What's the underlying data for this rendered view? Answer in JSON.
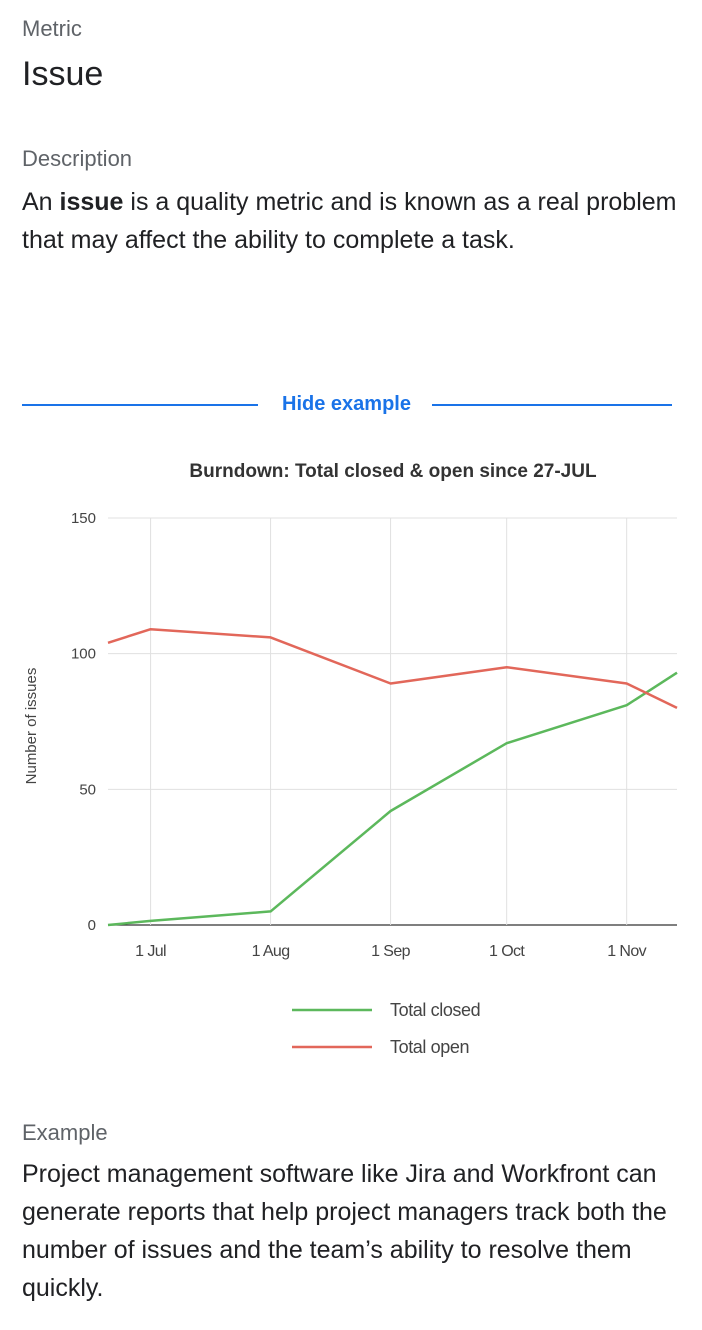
{
  "metric": {
    "label": "Metric",
    "value": "Issue"
  },
  "description": {
    "label": "Description",
    "prefix": "An ",
    "bold": "issue",
    "suffix": " is a quality metric and is known as a real problem that may affect the ability to complete a task."
  },
  "toggle": {
    "label": "Hide example"
  },
  "chart_data": {
    "type": "line",
    "title": "Burndown: Total closed & open since 27-JUL",
    "ylabel": "Number of issues",
    "xlabel": "",
    "ylim": [
      0,
      150
    ],
    "yticks": [
      0,
      50,
      100,
      150
    ],
    "xticks": [
      "1 Jul",
      "1 Aug",
      "1 Sep",
      "1 Oct",
      "1 Nov"
    ],
    "x": [
      "2023-06-20",
      "2023-07-01",
      "2023-08-01",
      "2023-09-01",
      "2023-10-01",
      "2023-11-01",
      "2023-11-14"
    ],
    "series": [
      {
        "name": "Total closed",
        "color": "#5cb85c",
        "values": [
          0,
          1.5,
          5,
          42,
          67,
          81,
          93
        ]
      },
      {
        "name": "Total open",
        "color": "#e2675a",
        "values": [
          104,
          109,
          106,
          89,
          95,
          89,
          80
        ]
      }
    ],
    "grid": true,
    "legend": "bottom"
  },
  "example": {
    "label": "Example",
    "text": "Project management software like Jira and Workfront can generate reports that help project managers track both the number of issues and the team’s ability to resolve them quickly."
  }
}
